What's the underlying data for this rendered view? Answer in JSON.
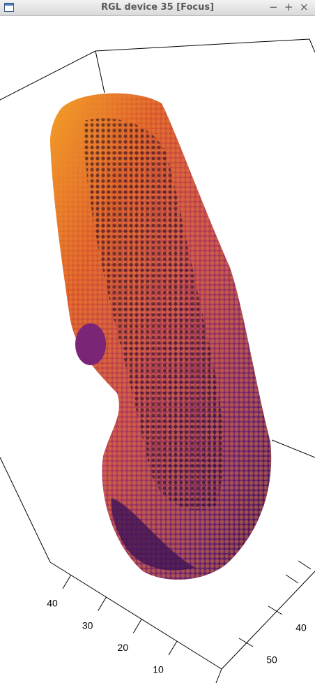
{
  "window": {
    "title": "RGL device 35 [Focus]",
    "controls": [
      "−",
      "+",
      "×"
    ]
  },
  "plot": {
    "left_axis_ticks": [
      10,
      20,
      30,
      40
    ],
    "right_axis_ticks": [
      40,
      50
    ]
  }
}
